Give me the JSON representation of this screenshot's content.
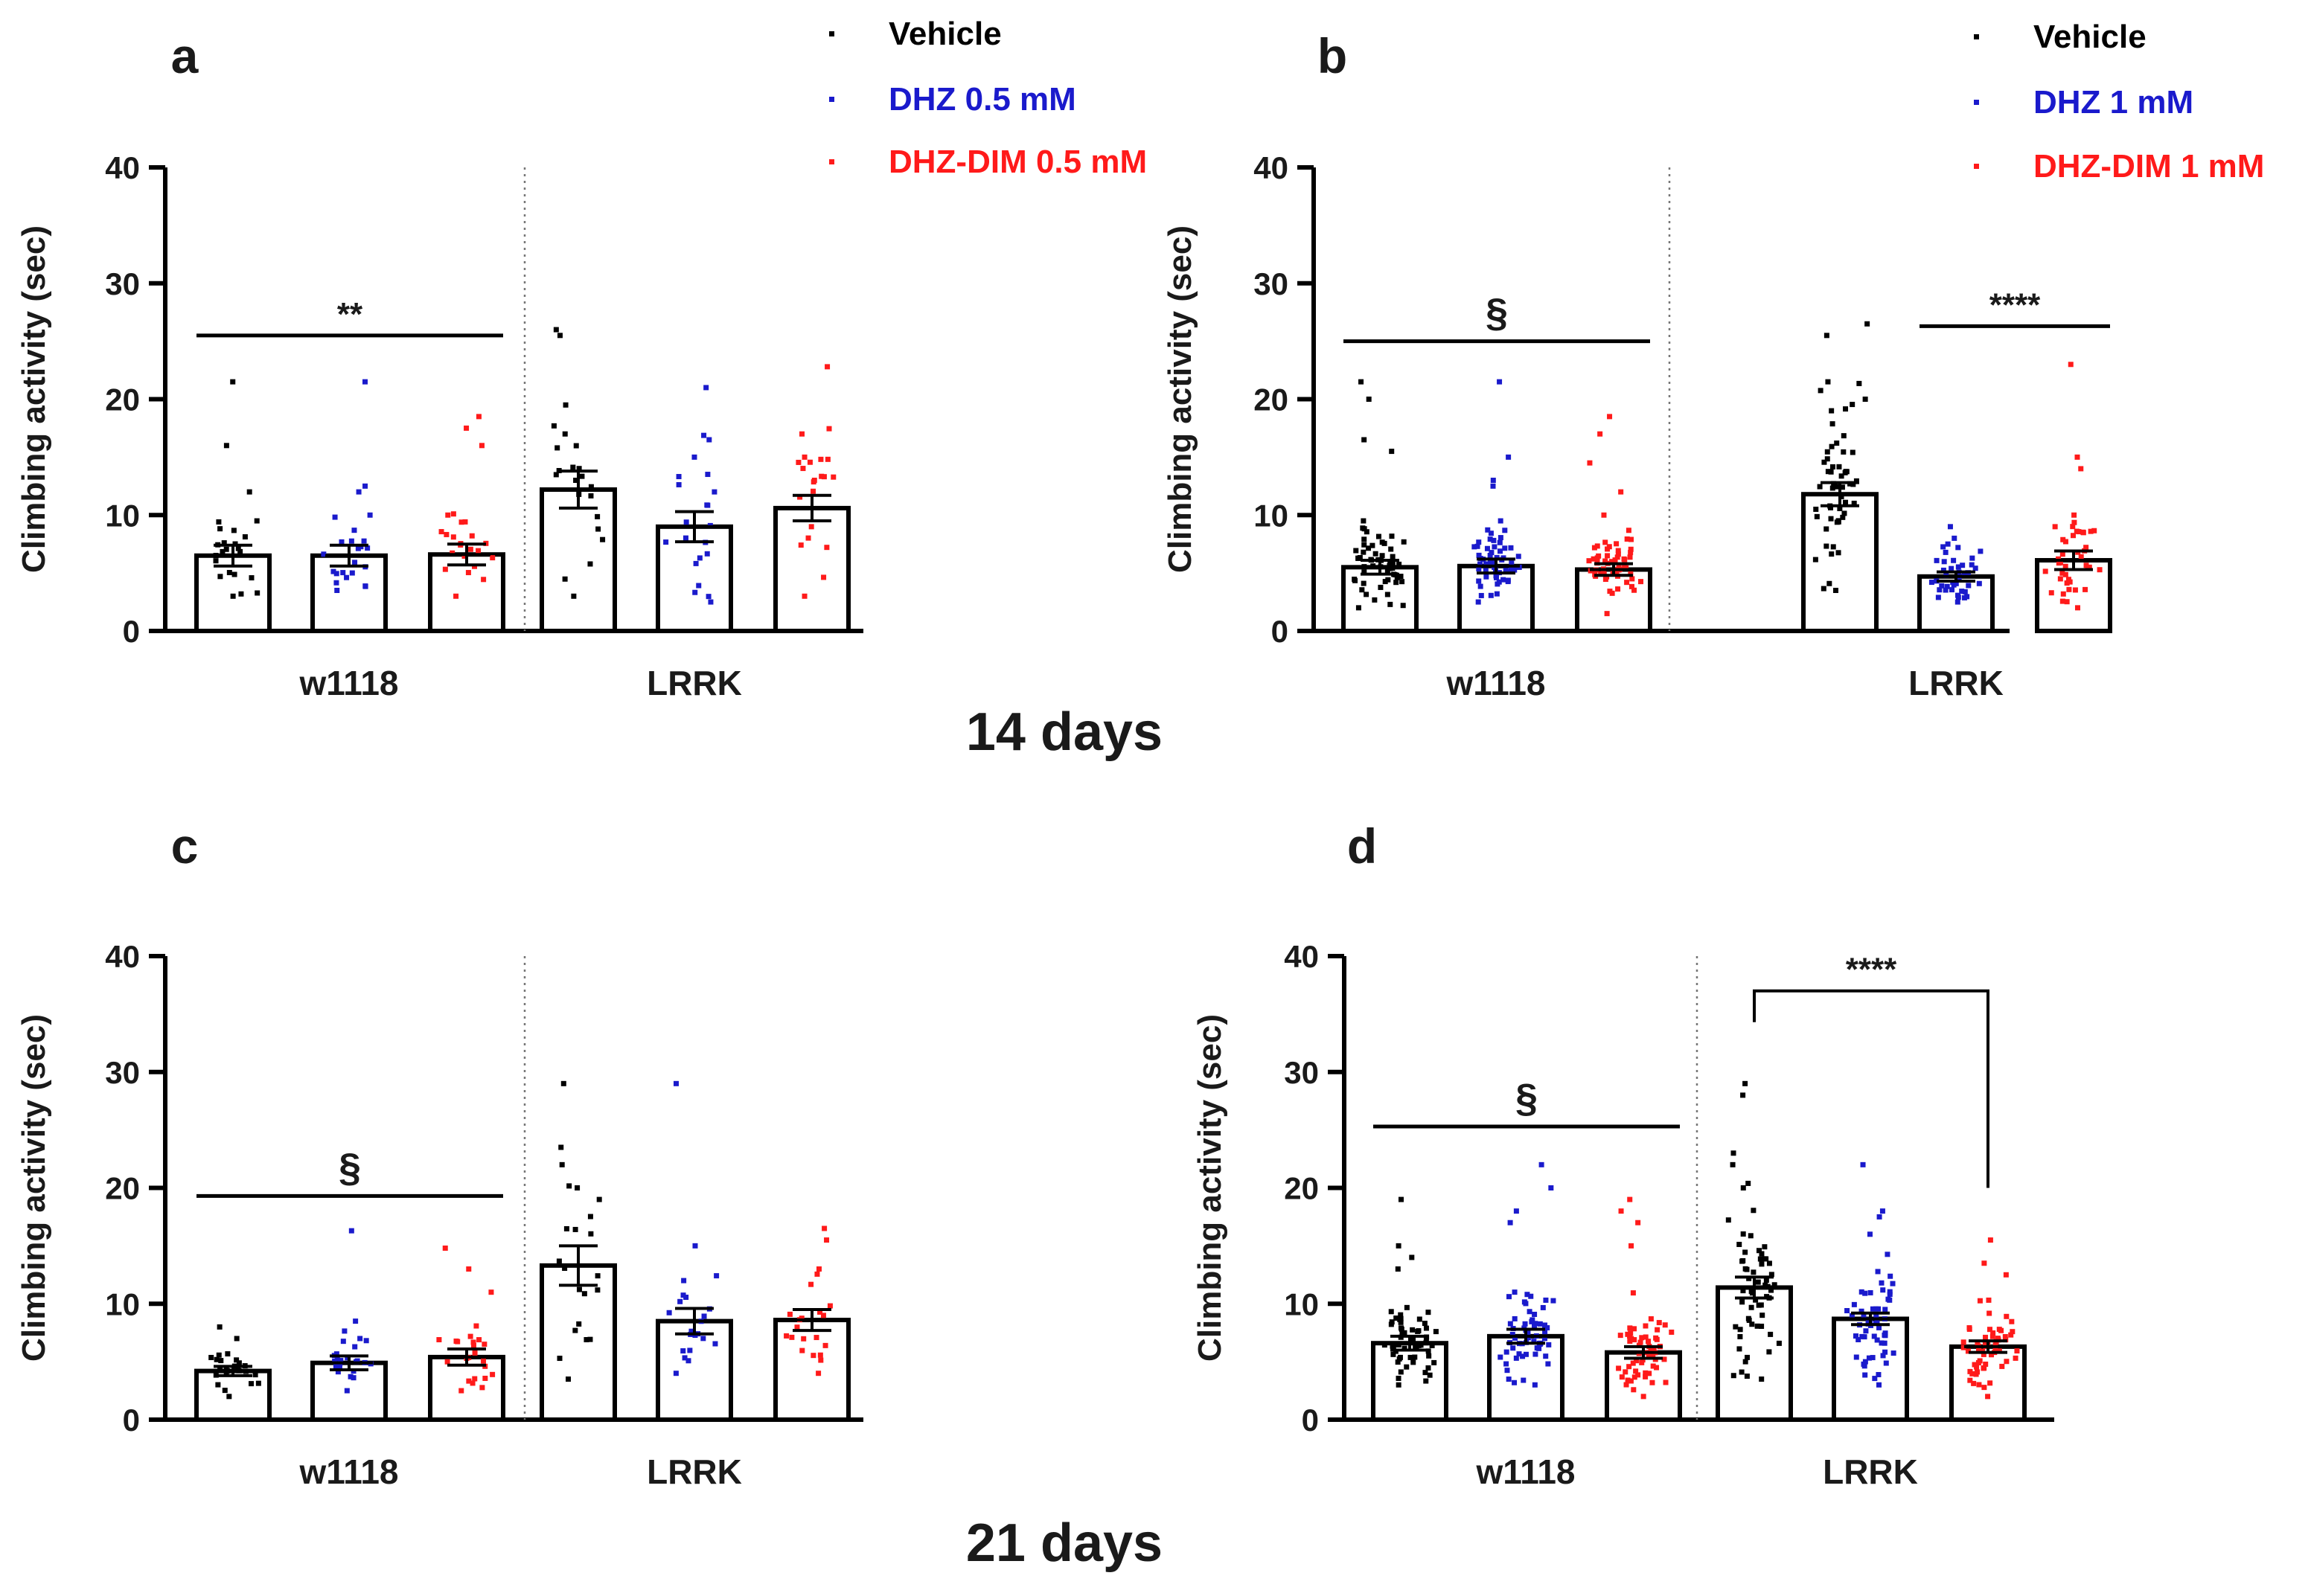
{
  "figure": {
    "caption_top": "14 days",
    "caption_bottom": "21 days"
  },
  "colors": {
    "Vehicle": "#000000",
    "DHZ": "#1a1acc",
    "DHZ-DIM": "#ff1a1a"
  },
  "chart_data": [
    {
      "panel": "a",
      "type": "bar",
      "ylabel": "Climbing activity (sec)",
      "ylim": [
        0,
        40
      ],
      "yticks": [
        0,
        10,
        20,
        30,
        40
      ],
      "groups": [
        "w1118",
        "LRRK"
      ],
      "legend": [
        {
          "label": "Vehicle",
          "color": "#000000"
        },
        {
          "label": "DHZ 0.5 mM",
          "color": "#1a1acc"
        },
        {
          "label": "DHZ-DIM 0.5 mM",
          "color": "#ff1a1a"
        }
      ],
      "series": [
        {
          "treatment": "Vehicle",
          "color": "#000000",
          "means": [
            6.5,
            12.2
          ],
          "sem": [
            0.9,
            1.6
          ],
          "n": [
            24,
            22
          ],
          "points": [
            [
              3.0,
              9.5,
              21.5,
              16.0,
              12.0
            ],
            [
              3.0,
              26.0,
              25.5,
              19.5,
              17.0,
              13.0
            ]
          ]
        },
        {
          "treatment": "DHZ",
          "color": "#1a1acc",
          "means": [
            6.5,
            9.0
          ],
          "sem": [
            0.9,
            1.3
          ],
          "n": [
            24,
            22
          ],
          "points": [
            [
              3.5,
              10.0,
              21.5,
              12.5,
              12.0
            ],
            [
              2.5,
              21.0,
              16.5,
              15.0,
              12.0
            ]
          ]
        },
        {
          "treatment": "DHZ-DIM",
          "color": "#ff1a1a",
          "means": [
            6.6,
            10.6
          ],
          "sem": [
            0.9,
            1.1
          ],
          "n": [
            24,
            22
          ],
          "points": [
            [
              3.0,
              10.0,
              18.5,
              17.5,
              16.0
            ],
            [
              3.0,
              22.8,
              17.0,
              15.0,
              13.0
            ]
          ]
        }
      ],
      "annotations": [
        {
          "text": "**",
          "type": "line",
          "from": [
            0,
            0
          ],
          "to": [
            0,
            2
          ],
          "y": 25.5
        }
      ]
    },
    {
      "panel": "b",
      "type": "bar",
      "ylabel": "Climbing activity (sec)",
      "ylim": [
        0,
        40
      ],
      "yticks": [
        0,
        10,
        20,
        30,
        40
      ],
      "groups": [
        "w1118",
        "LRRK"
      ],
      "legend": [
        {
          "label": "Vehicle",
          "color": "#000000"
        },
        {
          "label": "DHZ 1 mM",
          "color": "#1a1acc"
        },
        {
          "label": "DHZ-DIM 1 mM",
          "color": "#ff1a1a"
        }
      ],
      "series": [
        {
          "treatment": "Vehicle",
          "color": "#000000",
          "means": [
            5.5,
            11.8
          ],
          "sem": [
            0.6,
            1.0
          ],
          "n": [
            60,
            58
          ],
          "points": [
            [
              2.0,
              9.5,
              21.5,
              20.0,
              16.5,
              15.5
            ],
            [
              3.5,
              26.5,
              25.5,
              21.5,
              20.0,
              19.0
            ]
          ]
        },
        {
          "treatment": "DHZ",
          "color": "#1a1acc",
          "means": [
            5.6,
            4.7
          ],
          "sem": [
            0.6,
            0.4
          ],
          "n": [
            60,
            44
          ],
          "points": [
            [
              2.5,
              9.5,
              21.5,
              15.0,
              13.0,
              12.5
            ],
            [
              2.5,
              9.0,
              8.0,
              7.5
            ]
          ]
        },
        {
          "treatment": "DHZ-DIM",
          "color": "#ff1a1a",
          "means": [
            5.3,
            6.1
          ],
          "sem": [
            0.5,
            0.8
          ],
          "n": [
            60,
            44
          ],
          "points": [
            [
              1.5,
              10.0,
              18.5,
              17.0,
              14.5,
              12.0
            ],
            [
              2.0,
              23.0,
              15.0,
              14.0,
              10.0
            ]
          ]
        }
      ],
      "annotations": [
        {
          "text": "§",
          "type": "line",
          "from": [
            0,
            0
          ],
          "to": [
            0,
            2
          ],
          "y": 25.0
        },
        {
          "text": "****",
          "type": "line",
          "from": [
            1,
            1
          ],
          "to": [
            1,
            2
          ],
          "y": 26.3
        }
      ]
    },
    {
      "panel": "c",
      "type": "bar",
      "ylabel": "Climbing activity (sec)",
      "ylim": [
        0,
        40
      ],
      "yticks": [
        0,
        10,
        20,
        30,
        40
      ],
      "groups": [
        "w1118",
        "LRRK"
      ],
      "legend": [],
      "series": [
        {
          "treatment": "Vehicle",
          "color": "#000000",
          "means": [
            4.2,
            13.3
          ],
          "sem": [
            0.4,
            1.7
          ],
          "n": [
            26,
            22
          ],
          "points": [
            [
              2.0,
              8.0,
              7.0
            ],
            [
              3.5,
              29.0,
              23.5,
              22.0,
              20.0,
              19.0
            ]
          ]
        },
        {
          "treatment": "DHZ",
          "color": "#1a1acc",
          "means": [
            4.9,
            8.5
          ],
          "sem": [
            0.6,
            1.1
          ],
          "n": [
            26,
            22
          ],
          "points": [
            [
              2.5,
              16.3,
              8.5,
              7.0
            ],
            [
              4.0,
              29.0,
              15.0,
              12.0
            ]
          ]
        },
        {
          "treatment": "DHZ-DIM",
          "color": "#ff1a1a",
          "means": [
            5.4,
            8.6
          ],
          "sem": [
            0.7,
            0.9
          ],
          "n": [
            26,
            22
          ],
          "points": [
            [
              2.5,
              14.8,
              13.0,
              11.0
            ],
            [
              4.0,
              16.5,
              15.5,
              13.0
            ]
          ]
        }
      ],
      "annotations": [
        {
          "text": "§",
          "type": "line",
          "from": [
            0,
            0
          ],
          "to": [
            0,
            2
          ],
          "y": 19.3
        }
      ]
    },
    {
      "panel": "d",
      "type": "bar",
      "ylabel": "Climbing activity (sec)",
      "ylim": [
        0,
        40
      ],
      "yticks": [
        0,
        10,
        20,
        30,
        40
      ],
      "groups": [
        "w1118",
        "LRRK"
      ],
      "legend": [],
      "series": [
        {
          "treatment": "Vehicle",
          "color": "#000000",
          "means": [
            6.6,
            11.4
          ],
          "sem": [
            0.6,
            0.9
          ],
          "n": [
            62,
            62
          ],
          "points": [
            [
              3.0,
              19.0,
              15.0,
              14.0,
              13.0
            ],
            [
              3.5,
              29.0,
              28.0,
              23.0,
              22.0,
              20.0
            ]
          ]
        },
        {
          "treatment": "DHZ",
          "color": "#1a1acc",
          "means": [
            7.2,
            8.7
          ],
          "sem": [
            0.6,
            0.5
          ],
          "n": [
            62,
            62
          ],
          "points": [
            [
              3.0,
              22.0,
              20.0,
              18.0,
              17.0
            ],
            [
              3.0,
              22.0,
              18.0,
              17.5,
              16.0
            ]
          ]
        },
        {
          "treatment": "DHZ-DIM",
          "color": "#ff1a1a",
          "means": [
            5.8,
            6.3
          ],
          "sem": [
            0.5,
            0.5
          ],
          "n": [
            62,
            62
          ],
          "points": [
            [
              2.0,
              19.0,
              18.0,
              17.0,
              15.0
            ],
            [
              2.0,
              15.5,
              13.5,
              12.5
            ]
          ]
        }
      ],
      "annotations": [
        {
          "text": "§",
          "type": "line",
          "from": [
            0,
            0
          ],
          "to": [
            0,
            2
          ],
          "y": 25.3
        },
        {
          "text": "****",
          "type": "bracket",
          "from": [
            1,
            0
          ],
          "to": [
            1,
            2
          ],
          "y": 37.0,
          "drop_left": 34.3,
          "drop_right": 20.0
        }
      ]
    }
  ]
}
